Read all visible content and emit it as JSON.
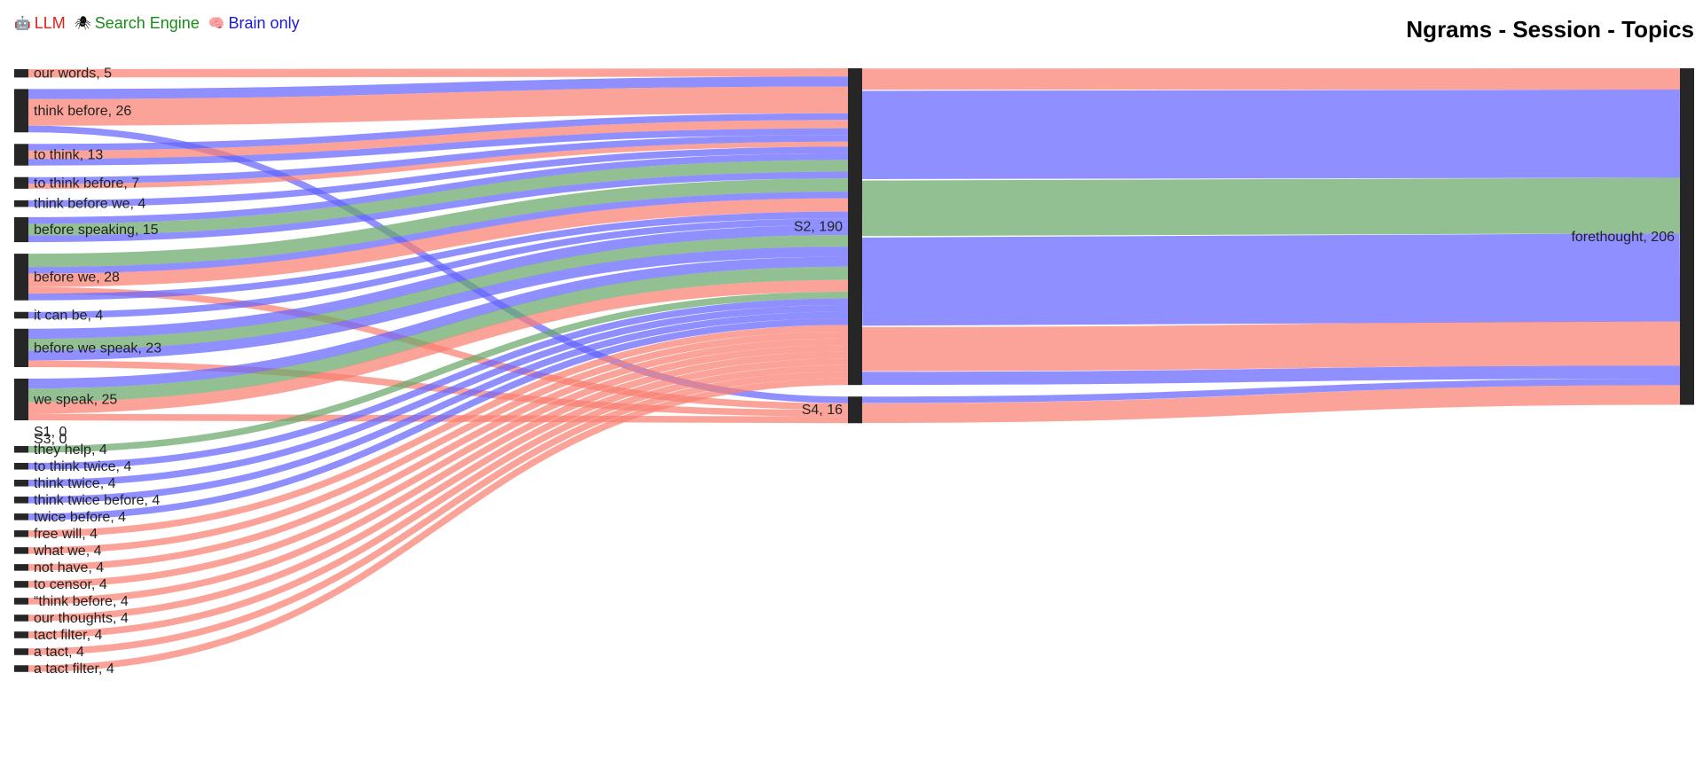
{
  "legend": [
    {
      "icon": "robot-icon",
      "glyph": "🤖",
      "label": "LLM",
      "color": "#e0201a"
    },
    {
      "icon": "spider-icon",
      "glyph": "🕷",
      "label": "Search Engine",
      "color": "#1a8a1a"
    },
    {
      "icon": "brain-icon",
      "glyph": "🧠",
      "label": "Brain only",
      "color": "#1a1ad6"
    }
  ],
  "chart_data": {
    "type": "sankey",
    "title": "Ngrams - Session - Topics",
    "group_colors": {
      "LLM": "#fa8072",
      "Search Engine": "#6aa86a",
      "Brain only": "#6464ff"
    },
    "node_color": "#262626",
    "columns": [
      [
        {
          "name": "our words",
          "value": 5
        },
        {
          "name": "think before",
          "value": 26
        },
        {
          "name": "to think",
          "value": 13
        },
        {
          "name": "to think before",
          "value": 7
        },
        {
          "name": "think before we",
          "value": 4
        },
        {
          "name": "before speaking",
          "value": 15
        },
        {
          "name": "before we",
          "value": 28
        },
        {
          "name": "it can be",
          "value": 4
        },
        {
          "name": "before we speak",
          "value": 23
        },
        {
          "name": "we speak",
          "value": 25
        },
        {
          "name": "S1",
          "value": 0
        },
        {
          "name": "S3",
          "value": 0
        },
        {
          "name": "they help",
          "value": 4
        },
        {
          "name": "to think twice",
          "value": 4
        },
        {
          "name": "think twice",
          "value": 4
        },
        {
          "name": "think twice before",
          "value": 4
        },
        {
          "name": "twice before",
          "value": 4
        },
        {
          "name": "free will",
          "value": 4
        },
        {
          "name": "what we",
          "value": 4
        },
        {
          "name": "not have",
          "value": 4
        },
        {
          "name": "to censor",
          "value": 4
        },
        {
          "name": "“think before",
          "value": 4
        },
        {
          "name": "our thoughts",
          "value": 4
        },
        {
          "name": "tact filter",
          "value": 4
        },
        {
          "name": "a tact",
          "value": 4
        },
        {
          "name": "a tact filter",
          "value": 4
        }
      ],
      [
        {
          "name": "S2",
          "value": 190
        },
        {
          "name": "S4",
          "value": 16
        }
      ],
      [
        {
          "name": "forethought",
          "value": 206
        }
      ]
    ],
    "links": [
      {
        "source": "our words",
        "target": "S2",
        "value": 5,
        "group": "LLM"
      },
      {
        "source": "think before",
        "target": "S2",
        "value": 6,
        "group": "Brain only"
      },
      {
        "source": "think before",
        "target": "S2",
        "value": 16,
        "group": "LLM"
      },
      {
        "source": "think before",
        "target": "S4",
        "value": 4,
        "group": "Brain only"
      },
      {
        "source": "to think",
        "target": "S2",
        "value": 4,
        "group": "Brain only"
      },
      {
        "source": "to think",
        "target": "S2",
        "value": 5,
        "group": "LLM"
      },
      {
        "source": "to think",
        "target": "S2",
        "value": 4,
        "group": "Brain only"
      },
      {
        "source": "to think before",
        "target": "S2",
        "value": 4,
        "group": "Brain only"
      },
      {
        "source": "to think before",
        "target": "S2",
        "value": 3,
        "group": "LLM"
      },
      {
        "source": "think before we",
        "target": "S2",
        "value": 4,
        "group": "Brain only"
      },
      {
        "source": "before speaking",
        "target": "S2",
        "value": 4,
        "group": "Brain only"
      },
      {
        "source": "before speaking",
        "target": "S2",
        "value": 7,
        "group": "Search Engine"
      },
      {
        "source": "before speaking",
        "target": "S2",
        "value": 4,
        "group": "Brain only"
      },
      {
        "source": "before we",
        "target": "S2",
        "value": 8,
        "group": "Search Engine"
      },
      {
        "source": "before we",
        "target": "S2",
        "value": 4,
        "group": "Brain only"
      },
      {
        "source": "before we",
        "target": "S2",
        "value": 8,
        "group": "LLM"
      },
      {
        "source": "before we",
        "target": "S4",
        "value": 4,
        "group": "LLM"
      },
      {
        "source": "before we",
        "target": "S2",
        "value": 4,
        "group": "Brain only"
      },
      {
        "source": "it can be",
        "target": "S2",
        "value": 4,
        "group": "Brain only"
      },
      {
        "source": "before we speak",
        "target": "S2",
        "value": 6,
        "group": "Brain only"
      },
      {
        "source": "before we speak",
        "target": "S2",
        "value": 7,
        "group": "Search Engine"
      },
      {
        "source": "before we speak",
        "target": "S2",
        "value": 6,
        "group": "Brain only"
      },
      {
        "source": "before we speak",
        "target": "S4",
        "value": 4,
        "group": "LLM"
      },
      {
        "source": "we speak",
        "target": "S2",
        "value": 6,
        "group": "Brain only"
      },
      {
        "source": "we speak",
        "target": "S2",
        "value": 8,
        "group": "Search Engine"
      },
      {
        "source": "we speak",
        "target": "S2",
        "value": 7,
        "group": "LLM"
      },
      {
        "source": "we speak",
        "target": "S4",
        "value": 4,
        "group": "LLM"
      },
      {
        "source": "they help",
        "target": "S2",
        "value": 4,
        "group": "Search Engine"
      },
      {
        "source": "to think twice",
        "target": "S2",
        "value": 4,
        "group": "Brain only"
      },
      {
        "source": "think twice",
        "target": "S2",
        "value": 4,
        "group": "Brain only"
      },
      {
        "source": "think twice before",
        "target": "S2",
        "value": 4,
        "group": "Brain only"
      },
      {
        "source": "twice before",
        "target": "S2",
        "value": 4,
        "group": "Brain only"
      },
      {
        "source": "free will",
        "target": "S2",
        "value": 4,
        "group": "LLM"
      },
      {
        "source": "what we",
        "target": "S2",
        "value": 4,
        "group": "LLM"
      },
      {
        "source": "not have",
        "target": "S2",
        "value": 4,
        "group": "LLM"
      },
      {
        "source": "to censor",
        "target": "S2",
        "value": 4,
        "group": "LLM"
      },
      {
        "source": "“think before",
        "target": "S2",
        "value": 4,
        "group": "LLM"
      },
      {
        "source": "our thoughts",
        "target": "S2",
        "value": 4,
        "group": "LLM"
      },
      {
        "source": "tact filter",
        "target": "S2",
        "value": 4,
        "group": "LLM"
      },
      {
        "source": "a tact",
        "target": "S2",
        "value": 4,
        "group": "LLM"
      },
      {
        "source": "a tact filter",
        "target": "S2",
        "value": 4,
        "group": "LLM"
      },
      {
        "source": "S2",
        "target": "forethought",
        "value": 13,
        "group": "LLM"
      },
      {
        "source": "S2",
        "target": "forethought",
        "value": 54,
        "group": "Brain only"
      },
      {
        "source": "S2",
        "target": "forethought",
        "value": 34,
        "group": "Search Engine"
      },
      {
        "source": "S2",
        "target": "forethought",
        "value": 54,
        "group": "Brain only"
      },
      {
        "source": "S2",
        "target": "forethought",
        "value": 27,
        "group": "LLM"
      },
      {
        "source": "S2",
        "target": "forethought",
        "value": 8,
        "group": "Brain only"
      },
      {
        "source": "S4",
        "target": "forethought",
        "value": 4,
        "group": "Brain only"
      },
      {
        "source": "S4",
        "target": "forethought",
        "value": 12,
        "group": "LLM"
      }
    ]
  }
}
